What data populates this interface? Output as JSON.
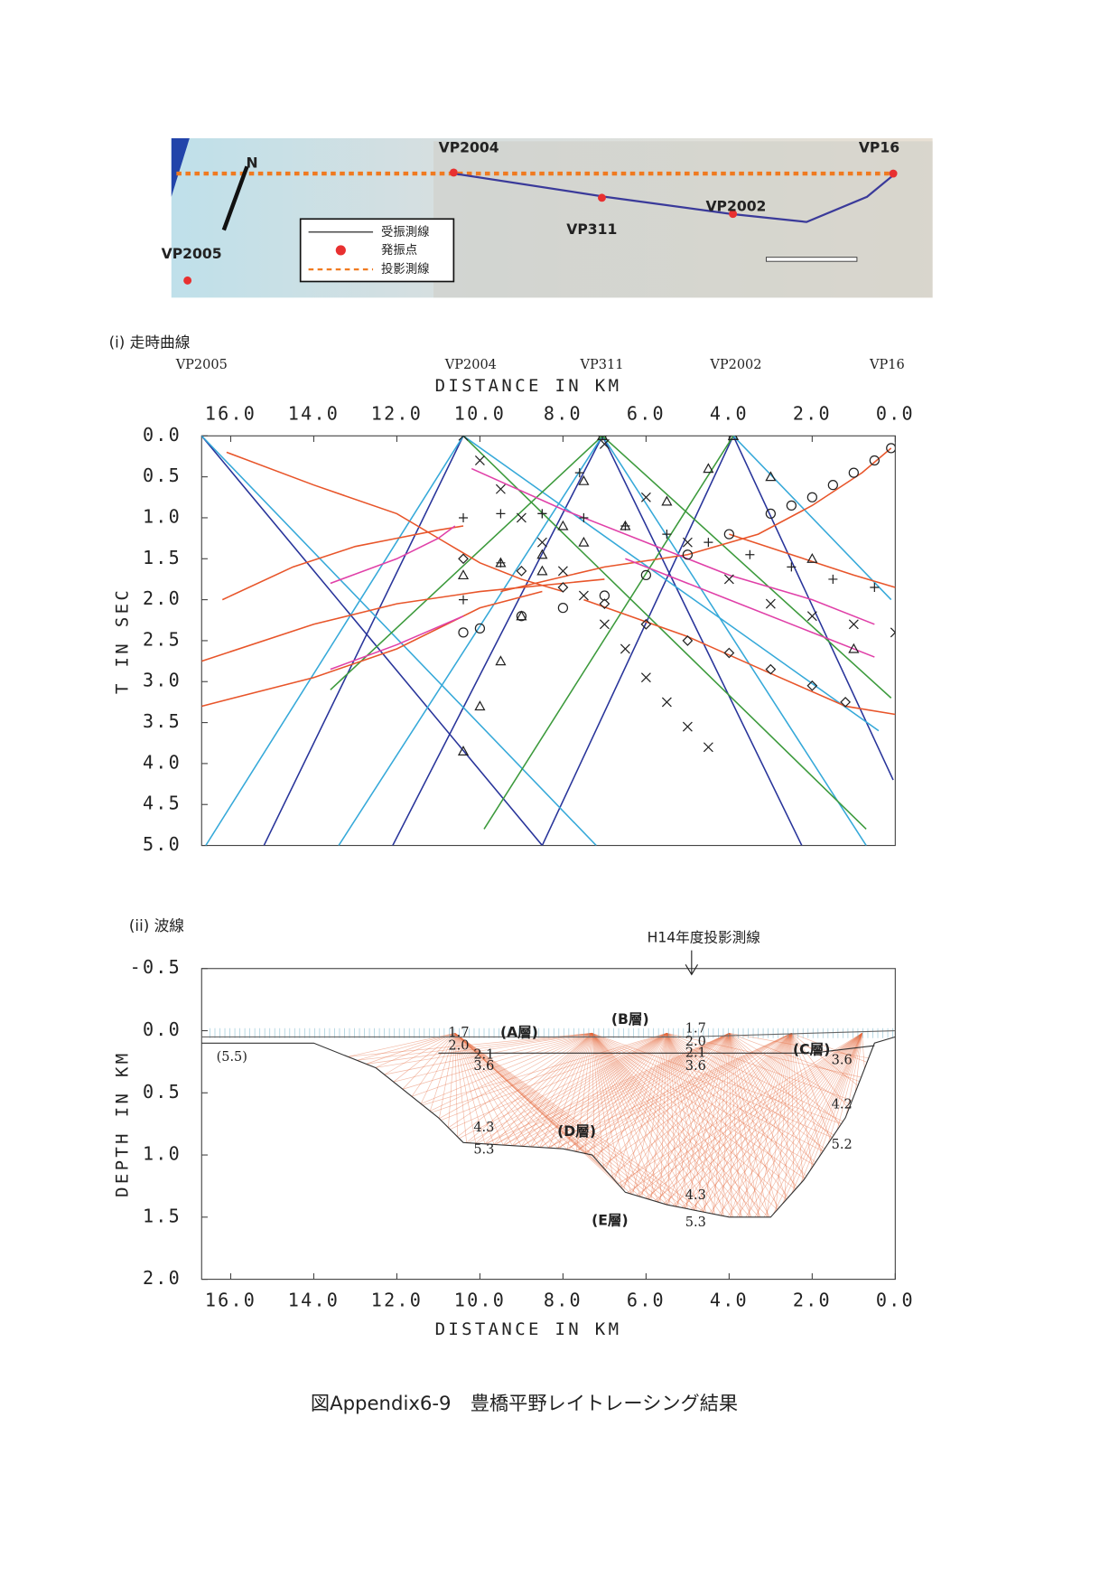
{
  "map": {
    "labels": [
      "VP2004",
      "VP16",
      "VP311",
      "VP2002",
      "VP2005",
      "N"
    ],
    "legend": [
      "受振測線",
      "発振点",
      "投影測線"
    ]
  },
  "caption": "図Appendix6-9　豊橋平野レイトレーシング結果",
  "chart_data": [
    {
      "type": "line",
      "title": "(i) 走時曲線",
      "x_label": "DISTANCE IN KM",
      "y_label": "T IN SEC",
      "annotations": [
        "VP2005",
        "VP2004",
        "VP311",
        "VP2002",
        "VP16"
      ],
      "xlim": [
        16.7,
        0
      ],
      "ylim": [
        0,
        5
      ],
      "xticks": [
        {
          "value": 16,
          "label": "16.0"
        },
        {
          "value": 14,
          "label": "14.0"
        },
        {
          "value": 12,
          "label": "12.0"
        },
        {
          "value": 10,
          "label": "10.0"
        },
        {
          "value": 8,
          "label": "8.0"
        },
        {
          "value": 6,
          "label": "6.0"
        },
        {
          "value": 4,
          "label": "4.0"
        },
        {
          "value": 2,
          "label": "2.0"
        },
        {
          "value": 0,
          "label": "0.0"
        }
      ],
      "yticks": [
        {
          "value": 0,
          "label": "0.0"
        },
        0.5,
        {
          "value": 1,
          "label": "1.0"
        },
        1.5,
        {
          "value": 2,
          "label": "2.0"
        },
        2.5,
        {
          "value": 3,
          "label": "3.0"
        },
        3.5,
        {
          "value": 4,
          "label": "4.0"
        },
        4.5,
        {
          "value": 5,
          "label": "5.0"
        }
      ],
      "series": [
        {
          "color": "#28349a",
          "x": [
            16.7,
            8.5
          ],
          "values": [
            0,
            5
          ]
        },
        {
          "color": "#28349a",
          "x": [
            15.2,
            10.4
          ],
          "values": [
            5,
            0
          ]
        },
        {
          "color": "#28349a",
          "x": [
            12.1,
            7.05
          ],
          "values": [
            5,
            0
          ]
        },
        {
          "color": "#28349a",
          "x": [
            8.5,
            3.9
          ],
          "values": [
            5,
            0
          ]
        },
        {
          "color": "#28349a",
          "x": [
            7.05,
            2.25
          ],
          "values": [
            0,
            5
          ]
        },
        {
          "color": "#28349a",
          "x": [
            3.9,
            0.05
          ],
          "values": [
            0,
            4.2
          ]
        },
        {
          "color": "#36a9d9",
          "x": [
            16.7,
            7.2
          ],
          "values": [
            0,
            5
          ]
        },
        {
          "color": "#36a9d9",
          "x": [
            16.6,
            10.4
          ],
          "values": [
            5,
            0
          ]
        },
        {
          "color": "#36a9d9",
          "x": [
            13.4,
            7.05
          ],
          "values": [
            5,
            0
          ]
        },
        {
          "color": "#36a9d9",
          "x": [
            7.05,
            0.7
          ],
          "values": [
            0,
            5
          ]
        },
        {
          "color": "#36a9d9",
          "x": [
            10.4,
            0.4
          ],
          "values": [
            0,
            3.6
          ]
        },
        {
          "color": "#36a9d9",
          "x": [
            3.9,
            0.1
          ],
          "values": [
            0,
            2.0
          ]
        },
        {
          "color": "#3c9a3c",
          "x": [
            13.6,
            7.05
          ],
          "values": [
            3.1,
            0
          ]
        },
        {
          "color": "#3c9a3c",
          "x": [
            9.9,
            3.9
          ],
          "values": [
            4.8,
            0
          ]
        },
        {
          "color": "#3c9a3c",
          "x": [
            10.4,
            0.7
          ],
          "values": [
            0,
            4.8
          ]
        },
        {
          "color": "#3c9a3c",
          "x": [
            7.05,
            0.1
          ],
          "values": [
            0,
            3.2
          ]
        },
        {
          "color": "#e8552a",
          "x": [
            16.1,
            14,
            12,
            11,
            10,
            9,
            8
          ],
          "values": [
            0.2,
            0.6,
            0.95,
            1.25,
            1.55,
            1.75,
            1.9
          ]
        },
        {
          "color": "#e8552a",
          "x": [
            16.2,
            14.5,
            13,
            12,
            11,
            10.4
          ],
          "values": [
            2.0,
            1.6,
            1.35,
            1.25,
            1.15,
            1.1
          ]
        },
        {
          "color": "#e8552a",
          "x": [
            16.7,
            14,
            12,
            10,
            8,
            7
          ],
          "values": [
            2.75,
            2.3,
            2.05,
            1.9,
            1.8,
            1.75
          ]
        },
        {
          "color": "#e8552a",
          "x": [
            16.7,
            14,
            12,
            10,
            8.5
          ],
          "values": [
            3.3,
            2.95,
            2.6,
            2.1,
            1.9
          ]
        },
        {
          "color": "#e8552a",
          "x": [
            7.5,
            5,
            3,
            1.2,
            0
          ],
          "values": [
            2.0,
            2.45,
            2.9,
            3.3,
            3.4
          ]
        },
        {
          "color": "#e8552a",
          "x": [
            9.5,
            7,
            5,
            3.3,
            2,
            0.8,
            0.1
          ],
          "values": [
            1.9,
            1.6,
            1.45,
            1.2,
            0.85,
            0.45,
            0.15
          ]
        },
        {
          "color": "#e8552a",
          "x": [
            4,
            2.5,
            1,
            0
          ],
          "values": [
            1.2,
            1.45,
            1.7,
            1.85
          ]
        },
        {
          "color": "#e040a8",
          "x": [
            13.6,
            12,
            11,
            10.6
          ],
          "values": [
            1.8,
            1.5,
            1.25,
            1.1
          ]
        },
        {
          "color": "#e040a8",
          "x": [
            13.6,
            12,
            10.4
          ],
          "values": [
            2.85,
            2.55,
            2.2
          ]
        },
        {
          "color": "#e040a8",
          "x": [
            10.2,
            8,
            6,
            4,
            2,
            0.5
          ],
          "values": [
            0.4,
            0.9,
            1.3,
            1.7,
            2.0,
            2.3
          ]
        },
        {
          "color": "#e040a8",
          "x": [
            6.5,
            4,
            2,
            0.5
          ],
          "values": [
            1.5,
            2.0,
            2.4,
            2.7
          ]
        },
        {
          "color": "#222222",
          "marker": "x",
          "x": [
            10.4,
            10,
            9.5,
            9,
            8.5,
            8,
            7.5,
            7,
            6.5,
            6,
            5.5,
            5,
            4.5
          ],
          "values": [
            0,
            0.3,
            0.65,
            1.0,
            1.3,
            1.65,
            1.95,
            2.3,
            2.6,
            2.95,
            3.25,
            3.55,
            3.8
          ]
        },
        {
          "color": "#222222",
          "marker": "x",
          "x": [
            7,
            6,
            5,
            4,
            3,
            2,
            1,
            0
          ],
          "values": [
            0.1,
            0.75,
            1.3,
            1.75,
            2.05,
            2.2,
            2.3,
            2.4
          ]
        },
        {
          "color": "#222222",
          "marker": "plus",
          "x": [
            10.4,
            9.5,
            8.5,
            7.6,
            7.05
          ],
          "values": [
            2.0,
            1.55,
            0.95,
            0.45,
            0
          ]
        },
        {
          "color": "#222222",
          "marker": "plus",
          "x": [
            10.4,
            9.5,
            8.5,
            7.5,
            6.5,
            5.5,
            4.5,
            3.5,
            2.5,
            1.5,
            0.5
          ],
          "values": [
            1.0,
            0.95,
            0.95,
            1.0,
            1.1,
            1.2,
            1.3,
            1.45,
            1.6,
            1.75,
            1.85
          ]
        },
        {
          "color": "#222222",
          "marker": "triangle",
          "x": [
            7.05,
            7.5,
            8,
            8.5,
            9,
            9.5,
            10,
            10.4
          ],
          "values": [
            0,
            0.55,
            1.1,
            1.65,
            2.2,
            2.75,
            3.3,
            3.85
          ]
        },
        {
          "color": "#222222",
          "marker": "triangle",
          "x": [
            3.9,
            4.5,
            5.5,
            6.5,
            7.5,
            8.5,
            9.5,
            10.4
          ],
          "values": [
            0,
            0.4,
            0.8,
            1.1,
            1.3,
            1.45,
            1.55,
            1.7
          ]
        },
        {
          "color": "#222222",
          "marker": "triangle",
          "x": [
            3.9,
            3,
            2,
            1
          ],
          "values": [
            0,
            0.5,
            1.5,
            2.6
          ]
        },
        {
          "color": "#222222",
          "marker": "circle",
          "x": [
            0.1,
            0.5,
            1,
            1.5,
            2,
            2.5,
            3,
            4,
            5,
            6,
            7,
            8,
            9,
            10,
            10.4
          ],
          "values": [
            0.15,
            0.3,
            0.45,
            0.6,
            0.75,
            0.85,
            0.95,
            1.2,
            1.45,
            1.7,
            1.95,
            2.1,
            2.2,
            2.35,
            2.4
          ]
        },
        {
          "color": "#222222",
          "marker": "diamond",
          "x": [
            10.4,
            9,
            8,
            7,
            6,
            5,
            4,
            3,
            2,
            1.2
          ],
          "values": [
            1.5,
            1.65,
            1.85,
            2.05,
            2.3,
            2.5,
            2.65,
            2.85,
            3.05,
            3.25
          ]
        }
      ]
    },
    {
      "type": "line",
      "title": "(ii) 波線",
      "annotation": "H14年度投影測線",
      "x_label": "DISTANCE IN KM",
      "y_label": "DEPTH IN KM",
      "labels": [
        "1.7",
        "2.0",
        "(A層)",
        "2.1",
        "3.6",
        "(B層)",
        "1.7",
        "2.0",
        "2.1",
        "3.6",
        "(C層)",
        "3.6",
        "(5.5)",
        "4.3",
        "5.3",
        "(D層)",
        "4.2",
        "5.2",
        "4.3",
        "5.3",
        "(E層)"
      ],
      "xlim": [
        16.7,
        0
      ],
      "ylim": [
        -0.5,
        2.0
      ],
      "xticks": [
        {
          "value": 16,
          "label": "16.0"
        },
        {
          "value": 14,
          "label": "14.0"
        },
        {
          "value": 12,
          "label": "12.0"
        },
        {
          "value": 10,
          "label": "10.0"
        },
        {
          "value": 8,
          "label": "8.0"
        },
        {
          "value": 6,
          "label": "6.0"
        },
        {
          "value": 4,
          "label": "4.0"
        },
        {
          "value": 2,
          "label": "2.0"
        },
        {
          "value": 0,
          "label": "0.0"
        }
      ],
      "yticks": [
        -0.5,
        {
          "value": 0,
          "label": "0.0"
        },
        0.5,
        {
          "value": 1,
          "label": "1.0"
        },
        1.5,
        {
          "value": 2,
          "label": "2.0"
        }
      ],
      "series": [
        {
          "color": "#333333",
          "x": [
            16.7,
            14,
            12.5,
            11,
            10.4,
            8,
            7.3,
            6.5,
            5.5,
            4,
            3,
            2.2,
            1.2,
            0.5,
            0
          ],
          "values": [
            0.1,
            0.1,
            0.3,
            0.7,
            0.9,
            0.95,
            1.0,
            1.3,
            1.4,
            1.5,
            1.5,
            1.2,
            0.7,
            0.1,
            0.05
          ]
        },
        {
          "color": "#333333",
          "x": [
            11,
            8,
            5,
            2,
            0.5
          ],
          "values": [
            0.18,
            0.18,
            0.18,
            0.18,
            0.12
          ]
        },
        {
          "color": "#666666",
          "x": [
            16.7,
            10,
            5,
            0
          ],
          "values": [
            0.05,
            0.05,
            0.05,
            0.0
          ]
        }
      ]
    }
  ]
}
